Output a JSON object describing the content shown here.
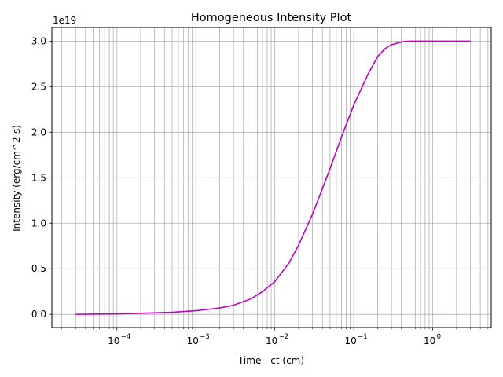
{
  "chart_data": {
    "type": "line",
    "title": "Homogeneous Intensity Plot",
    "xlabel": "Time - ct (cm)",
    "ylabel": "Intensity (erg/cm^2-s)",
    "x_scale": "log",
    "xlim": [
      1.5e-05,
      5.5
    ],
    "ylim": [
      -1.45e+18,
      3.15e+19
    ],
    "y_offset_label": "1e19",
    "grid": true,
    "x_ticks": [
      {
        "value": 0.0001,
        "base": "10",
        "exp": "−4"
      },
      {
        "value": 0.001,
        "base": "10",
        "exp": "−3"
      },
      {
        "value": 0.01,
        "base": "10",
        "exp": "−2"
      },
      {
        "value": 0.1,
        "base": "10",
        "exp": "−1"
      },
      {
        "value": 1,
        "base": "10",
        "exp": "0"
      }
    ],
    "y_ticks": [
      {
        "value": 0,
        "label": "0.0"
      },
      {
        "value": 5e+18,
        "label": "0.5"
      },
      {
        "value": 1e+19,
        "label": "1.0"
      },
      {
        "value": 1.5e+19,
        "label": "1.5"
      },
      {
        "value": 2e+19,
        "label": "2.0"
      },
      {
        "value": 2.5e+19,
        "label": "2.5"
      },
      {
        "value": 3e+19,
        "label": "3.0"
      }
    ],
    "series": [
      {
        "color": "#bf00bf",
        "x": [
          3e-05,
          0.0001,
          0.0002,
          0.0005,
          0.001,
          0.002,
          0.003,
          0.005,
          0.007,
          0.01,
          0.015,
          0.02,
          0.03,
          0.04,
          0.05,
          0.07,
          0.1,
          0.15,
          0.2,
          0.25,
          0.3,
          0.4,
          0.5,
          0.7,
          1,
          2,
          3
        ],
        "y": [
          5000000000000000.0,
          5e+16,
          1.2e+17,
          2.3e+17,
          4e+17,
          7e+17,
          1e+18,
          1.7e+18,
          2.5e+18,
          3.6e+18,
          5.6e+18,
          7.6e+18,
          1.1e+19,
          1.38e+19,
          1.6e+19,
          1.95e+19,
          2.3e+19,
          2.63e+19,
          2.83e+19,
          2.92e+19,
          2.96e+19,
          2.99e+19,
          3e+19,
          3e+19,
          3e+19,
          3e+19,
          3e+19
        ]
      }
    ]
  }
}
